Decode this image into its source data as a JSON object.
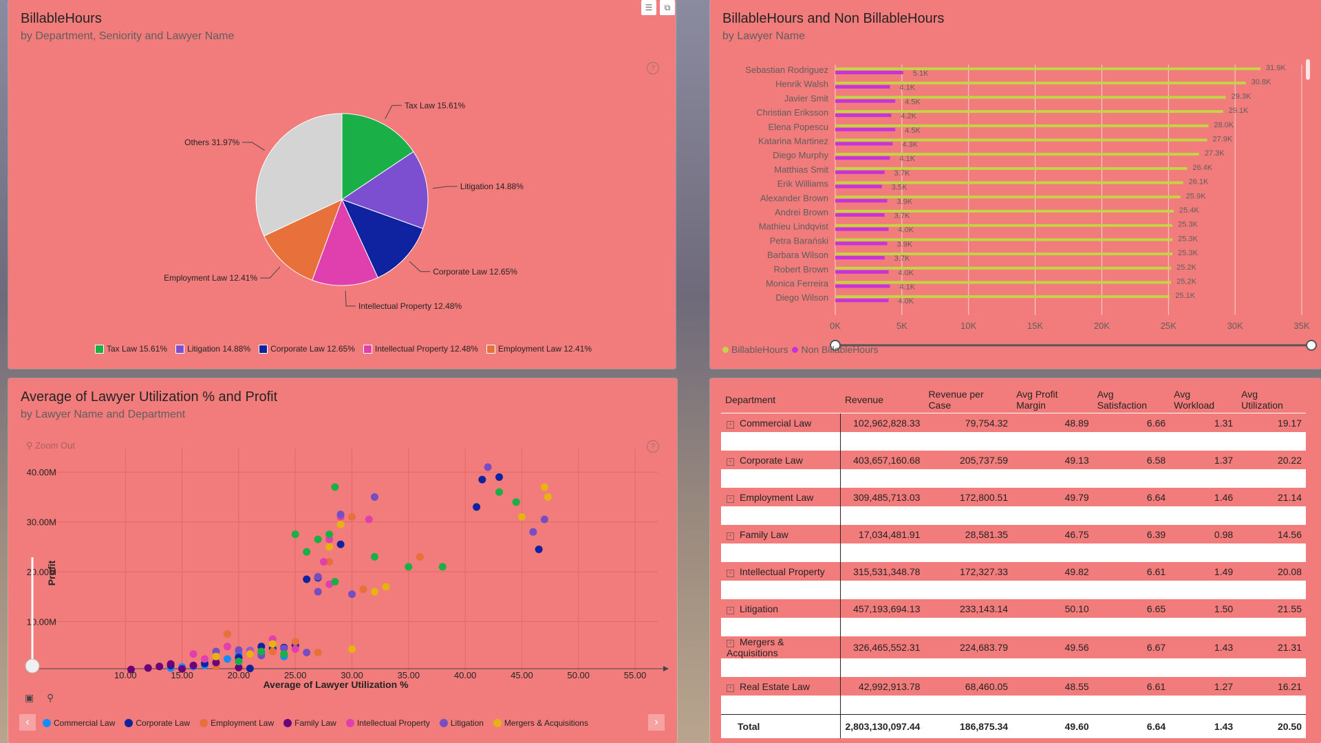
{
  "pie_panel": {
    "title": "BillableHours",
    "subtitle": "by Department, Seniority and Lawyer Name",
    "help_icon": "?"
  },
  "bar_panel": {
    "title": "BillableHours and Non BillableHours",
    "subtitle": "by Lawyer Name"
  },
  "scatter_panel": {
    "title": "Average of Lawyer Utilization % and Profit",
    "subtitle": "by Lawyer Name and Department",
    "zoom_out": "Zoom Out"
  },
  "colors": {
    "panel": "#f27b7b",
    "tax": "#1aaf47",
    "litigation": "#7b4fcf",
    "corporate": "#0f23a0",
    "ip": "#e03fae",
    "employment": "#e8703a",
    "others": "#d4d4d4",
    "billable": "#c3d545",
    "nonbillable": "#c434d8",
    "commercial": "#118dff",
    "family": "#6b007b",
    "mergers": "#e6b310",
    "scatter_litigation": "#744ec2"
  },
  "chart_data": [
    {
      "type": "pie",
      "categories": [
        "Tax Law",
        "Litigation",
        "Corporate Law",
        "Intellectual Property",
        "Employment Law",
        "Others"
      ],
      "values": [
        15.61,
        14.88,
        12.65,
        12.48,
        12.41,
        31.97
      ],
      "slice_labels": [
        "Tax Law 15.61%",
        "Litigation 14.88%",
        "Corporate Law 12.65%",
        "Intellectual Property 12.48%",
        "Employment Law 12.41%",
        "Others 31.97%"
      ],
      "legend": [
        "Tax Law 15.61%",
        "Litigation 14.88%",
        "Corporate Law 12.65%",
        "Intellectual Property 12.48%",
        "Employment Law 12.41%"
      ],
      "legend_position": "bottom"
    },
    {
      "type": "bar",
      "orientation": "horizontal",
      "categories": [
        "Sebastian Rodriguez",
        "Henrik Walsh",
        "Javier Smit",
        "Christian Eriksson",
        "Elena Popescu",
        "Katarina Martinez",
        "Diego Murphy",
        "Matthias Smit",
        "Erik Williams",
        "Alexander Brown",
        "Andrei Brown",
        "Mathieu Lindqvist",
        "Petra Barański",
        "Barbara Wilson",
        "Robert Brown",
        "Monica Ferreira",
        "Diego Wilson"
      ],
      "series": [
        {
          "name": "BillableHours",
          "values": [
            31900,
            30800,
            29300,
            29100,
            28000,
            27900,
            27300,
            26400,
            26100,
            25900,
            25400,
            25300,
            25300,
            25300,
            25200,
            25200,
            25100
          ],
          "labels": [
            "31.9K",
            "30.8K",
            "29.3K",
            "29.1K",
            "28.0K",
            "27.9K",
            "27.3K",
            "26.4K",
            "26.1K",
            "25.9K",
            "25.4K",
            "25.3K",
            "25.3K",
            "25.3K",
            "25.2K",
            "25.2K",
            "25.1K"
          ]
        },
        {
          "name": "Non BillableHours",
          "values": [
            5100,
            4100,
            4500,
            4200,
            4500,
            4300,
            4100,
            3700,
            3500,
            3900,
            3700,
            4000,
            3900,
            3700,
            4000,
            4100,
            4000
          ],
          "labels": [
            "5.1K",
            "4.1K",
            "4.5K",
            "4.2K",
            "4.5K",
            "4.3K",
            "4.1K",
            "3.7K",
            "3.5K",
            "3.9K",
            "3.7K",
            "4.0K",
            "3.9K",
            "3.7K",
            "4.0K",
            "4.1K",
            "4.0K"
          ]
        }
      ],
      "xticks": [
        "0K",
        "5K",
        "10K",
        "15K",
        "20K",
        "25K",
        "30K",
        "35K"
      ],
      "xlim": [
        0,
        35000
      ],
      "grid": true,
      "legend_position": "bottom-left"
    },
    {
      "type": "scatter",
      "xlabel": "Average of Lawyer Utilization %",
      "ylabel": "Profit",
      "xlim": [
        5,
        57
      ],
      "ylim": [
        0,
        45000000
      ],
      "xticks": [
        "10.00",
        "15.00",
        "20.00",
        "25.00",
        "30.00",
        "35.00",
        "40.00",
        "45.00",
        "50.00",
        "55.00"
      ],
      "yticks": [
        "10.00M",
        "20.00M",
        "30.00M",
        "40.00M"
      ],
      "grid": true,
      "legend": [
        "Commercial Law",
        "Corporate Law",
        "Employment Law",
        "Family Law",
        "Intellectual Property",
        "Litigation",
        "Mergers & Acquisitions"
      ],
      "legend_position": "bottom",
      "series": [
        {
          "name": "Commercial Law",
          "points": [
            [
              14,
              0.7
            ],
            [
              16,
              1.0
            ],
            [
              18,
              1.5
            ],
            [
              19,
              2.5
            ],
            [
              20,
              3.5
            ],
            [
              21,
              4.2
            ],
            [
              22,
              3.6
            ],
            [
              23,
              4.5
            ],
            [
              24,
              3.0
            ],
            [
              17,
              1.2
            ],
            [
              15,
              0.9
            ]
          ]
        },
        {
          "name": "Corporate Law",
          "points": [
            [
              26,
              18.5
            ],
            [
              27,
              18.8
            ],
            [
              29,
              25.5
            ],
            [
              41,
              33
            ],
            [
              41.5,
              38.5
            ],
            [
              43,
              39
            ],
            [
              46.5,
              24.5
            ],
            [
              14,
              1.2
            ],
            [
              17,
              1.6
            ],
            [
              20,
              2.8
            ],
            [
              22,
              5.0
            ],
            [
              23,
              4.6
            ],
            [
              24,
              4.8
            ],
            [
              25,
              5.2
            ],
            [
              21,
              0.6
            ]
          ]
        },
        {
          "name": "Employment Law",
          "points": [
            [
              26,
              24
            ],
            [
              28,
              22
            ],
            [
              30,
              31
            ],
            [
              31,
              16.5
            ],
            [
              36,
              23
            ],
            [
              18,
              1.0
            ],
            [
              19,
              7.5
            ],
            [
              21,
              3.5
            ],
            [
              25,
              6.0
            ],
            [
              27,
              3.8
            ],
            [
              23,
              4.0
            ]
          ]
        },
        {
          "name": "Family Law",
          "points": [
            [
              10.5,
              0.4
            ],
            [
              12,
              0.7
            ],
            [
              13,
              1.0
            ],
            [
              15,
              0.5
            ],
            [
              16,
              1.2
            ],
            [
              20,
              0.8
            ],
            [
              18,
              1.8
            ],
            [
              14,
              1.5
            ]
          ]
        },
        {
          "name": "Intellectual Property",
          "points": [
            [
              28,
              26.5
            ],
            [
              27.5,
              22
            ],
            [
              29,
              31
            ],
            [
              31.5,
              30.5
            ],
            [
              27,
              19
            ],
            [
              28,
              17.5
            ],
            [
              25,
              4.5
            ],
            [
              23,
              6.5
            ],
            [
              19,
              5.0
            ],
            [
              21,
              4.0
            ],
            [
              17,
              2.5
            ],
            [
              16,
              3.5
            ]
          ]
        },
        {
          "name": "Litigation",
          "points": [
            [
              29,
              31.5
            ],
            [
              32,
              35
            ],
            [
              27,
              19
            ],
            [
              27,
              16
            ],
            [
              30,
              15.5
            ],
            [
              42,
              41
            ],
            [
              46,
              28
            ],
            [
              47,
              30.5
            ],
            [
              18,
              4.0
            ],
            [
              20,
              4.3
            ],
            [
              22,
              3.2
            ],
            [
              24,
              4.6
            ],
            [
              26,
              3.8
            ]
          ]
        },
        {
          "name": "Mergers & Acquisitions",
          "points": [
            [
              29,
              29.5
            ],
            [
              33,
              17
            ],
            [
              45,
              31
            ],
            [
              47,
              37
            ],
            [
              47.3,
              35
            ],
            [
              28,
              25
            ],
            [
              32,
              16
            ],
            [
              21,
              3.5
            ],
            [
              23,
              5.5
            ],
            [
              18,
              3.0
            ],
            [
              30,
              4.5
            ]
          ]
        },
        {
          "name": "Green",
          "points": [
            [
              28.5,
              37
            ],
            [
              25,
              27.5
            ],
            [
              28,
              27.5
            ],
            [
              27,
              26.5
            ],
            [
              26,
              24
            ],
            [
              28.5,
              18
            ],
            [
              32,
              23
            ],
            [
              35,
              21
            ],
            [
              38,
              21
            ],
            [
              43,
              36
            ],
            [
              44.5,
              34
            ],
            [
              22,
              4.0
            ],
            [
              20,
              2.0
            ],
            [
              24,
              3.5
            ]
          ]
        }
      ]
    },
    {
      "type": "table",
      "columns": [
        "Department",
        "Revenue",
        "Revenue per Case",
        "Avg Profit Margin",
        "Avg Satisfaction",
        "Avg Workload",
        "Avg Utilization"
      ],
      "rows": [
        [
          "Commercial Law",
          "102,962,828.33",
          "79,754.32",
          "48.89",
          "6.66",
          "1.31",
          "19.17"
        ],
        [
          "Corporate Law",
          "403,657,160.68",
          "205,737.59",
          "49.13",
          "6.58",
          "1.37",
          "20.22"
        ],
        [
          "Employment Law",
          "309,485,713.03",
          "172,800.51",
          "49.79",
          "6.64",
          "1.46",
          "21.14"
        ],
        [
          "Family Law",
          "17,034,481.91",
          "28,581.35",
          "46.75",
          "6.39",
          "0.98",
          "14.56"
        ],
        [
          "Intellectual Property",
          "315,531,348.78",
          "172,327.33",
          "49.82",
          "6.61",
          "1.49",
          "20.08"
        ],
        [
          "Litigation",
          "457,193,694.13",
          "233,143.14",
          "50.10",
          "6.65",
          "1.50",
          "21.55"
        ],
        [
          "Mergers & Acquisitions",
          "326,465,552.31",
          "224,683.79",
          "49.56",
          "6.67",
          "1.43",
          "21.31"
        ],
        [
          "Real Estate Law",
          "42,992,913.78",
          "68,460.05",
          "48.55",
          "6.61",
          "1.27",
          "16.21"
        ]
      ],
      "total": [
        "Total",
        "2,803,130,097.44",
        "186,875.34",
        "49.60",
        "6.64",
        "1.43",
        "20.50"
      ]
    }
  ]
}
